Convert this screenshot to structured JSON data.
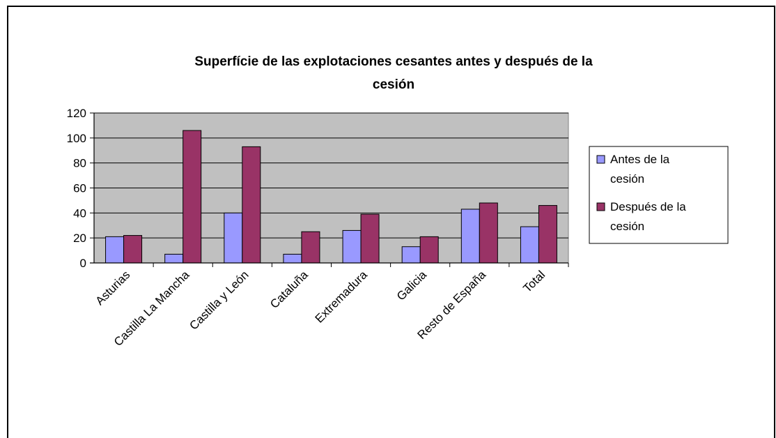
{
  "chart_data": {
    "type": "bar",
    "title_lines": [
      "Superfície de las explotaciones cesantes antes y después de la",
      "cesión"
    ],
    "categories": [
      "Asturias",
      "Castilla La Mancha",
      "Castilla y León",
      "Cataluña",
      "Extremadura",
      "Galicia",
      "Resto de España",
      "Total"
    ],
    "series": [
      {
        "name_lines": [
          "Antes de la",
          "cesión"
        ],
        "color": "#9999FF",
        "values": [
          21,
          7,
          40,
          7,
          26,
          13,
          43,
          29
        ]
      },
      {
        "name_lines": [
          "Después de la",
          "cesión"
        ],
        "color": "#993366",
        "values": [
          22,
          106,
          93,
          25,
          39,
          21,
          48,
          46
        ]
      }
    ],
    "ylim": [
      0,
      120
    ],
    "yticks": [
      "0",
      "20",
      "40",
      "60",
      "80",
      "100",
      "120"
    ],
    "plot_background": "#C0C0C0",
    "grid": true,
    "legend_position": "right"
  }
}
